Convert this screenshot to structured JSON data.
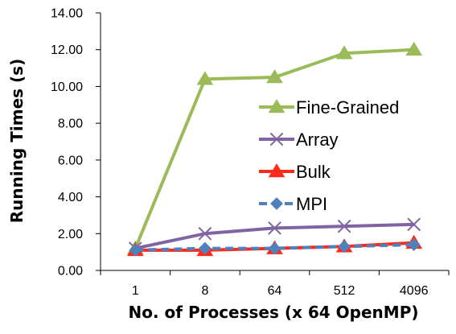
{
  "chart_data": {
    "type": "line",
    "title": "",
    "xlabel": "No. of Processes (x 64 OpenMP)",
    "ylabel": "Running Times (s)",
    "categories": [
      "1",
      "8",
      "64",
      "512",
      "4096"
    ],
    "ylim": [
      0,
      14
    ],
    "y_ticks": [
      "0.00",
      "2.00",
      "4.00",
      "6.00",
      "8.00",
      "10.00",
      "12.00",
      "14.00"
    ],
    "grid": false,
    "legend": "center-right",
    "series": [
      {
        "name": "Fine-Grained",
        "values": [
          1.2,
          10.4,
          10.5,
          11.8,
          12.0
        ],
        "color": "#9bbb59",
        "marker": "triangle",
        "dash": "solid"
      },
      {
        "name": "Array",
        "values": [
          1.2,
          2.0,
          2.3,
          2.4,
          2.5
        ],
        "color": "#8064a2",
        "marker": "x",
        "dash": "solid"
      },
      {
        "name": "Bulk",
        "values": [
          1.1,
          1.1,
          1.2,
          1.3,
          1.5
        ],
        "color": "#ff2a1a",
        "marker": "triangle",
        "dash": "solid"
      },
      {
        "name": "MPI",
        "values": [
          1.1,
          1.2,
          1.2,
          1.3,
          1.4
        ],
        "color": "#4f81bd",
        "marker": "diamond",
        "dash": "dashed"
      }
    ]
  }
}
